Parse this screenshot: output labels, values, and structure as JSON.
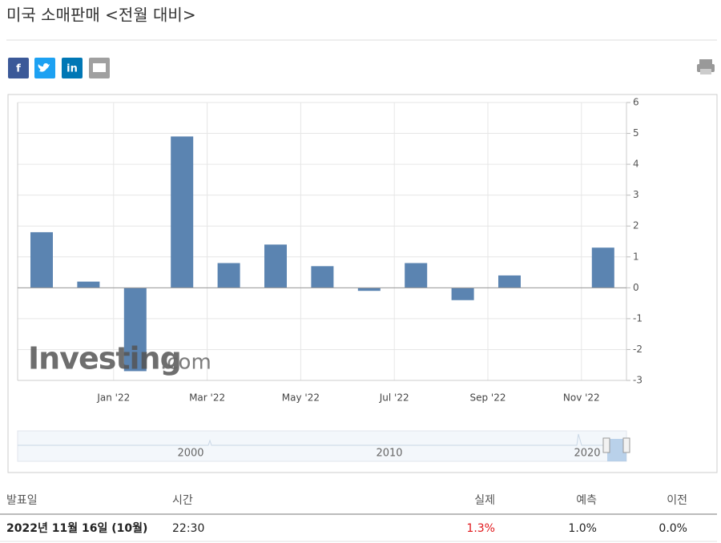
{
  "header": {
    "title": "미국 소매판매 <전월 대비>"
  },
  "share_buttons": [
    "f",
    "in"
  ],
  "chart_data": {
    "type": "bar",
    "categories": [
      null,
      null,
      "Jan '22",
      null,
      "Mar '22",
      null,
      "May '22",
      null,
      "Jul '22",
      null,
      "Sep '22",
      null,
      "Nov '22"
    ],
    "values": [
      1.8,
      0.2,
      -2.7,
      4.9,
      0.8,
      1.4,
      0.7,
      -0.1,
      0.8,
      -0.4,
      0.4,
      0,
      1.3
    ],
    "color": "#5b84b1",
    "ylim": [
      -3,
      6
    ],
    "yticks": [
      -3,
      -2,
      -1,
      0,
      1,
      2,
      3,
      4,
      5,
      6
    ],
    "grid": true,
    "watermark": [
      "Investing",
      ".com"
    ],
    "navigator_labels": [
      "2000",
      "2010",
      "2020"
    ]
  },
  "table": {
    "header": [
      "발표일",
      "시간",
      "실제",
      "예측",
      "이전"
    ],
    "rows": [
      [
        "2022년 11월 16일 (10월)",
        "22:30",
        "1.3%",
        "1.0%",
        "0.0%"
      ]
    ]
  }
}
